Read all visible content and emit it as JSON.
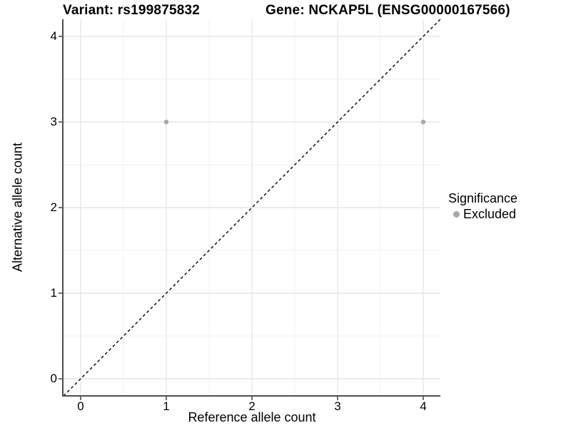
{
  "header": {
    "title_left": "Variant: rs199875832",
    "title_right": "Gene: NCKAP5L (ENSG00000167566)"
  },
  "chart_data": {
    "type": "scatter",
    "title": "Variant: rs199875832   Gene: NCKAP5L (ENSG00000167566)",
    "xlabel": "Reference allele count",
    "ylabel": "Alternative allele count",
    "xlim": [
      -0.2,
      4.2
    ],
    "ylim": [
      -0.2,
      4.2
    ],
    "x_ticks": [
      0,
      1,
      2,
      3,
      4
    ],
    "y_ticks": [
      0,
      1,
      2,
      3,
      4
    ],
    "grid": true,
    "minor_grid": true,
    "legend_position": "right",
    "series": [
      {
        "name": "Excluded",
        "color": "#a8a8a8",
        "marker": "circle",
        "points": [
          [
            1,
            3
          ],
          [
            4,
            3
          ]
        ]
      }
    ],
    "reference_line": {
      "slope": 1,
      "intercept": 0,
      "style": "dashed",
      "color": "#000000"
    }
  },
  "legend": {
    "title": "Significance",
    "items": [
      {
        "label": "Excluded",
        "swatch_color": "#a8a8a8"
      }
    ]
  },
  "colors": {
    "background": "#ffffff",
    "grid_major": "#e6e6e6",
    "grid_minor": "#f2f2f2",
    "axis_line": "#4f4f4f",
    "tick_mark": "#4f4f4f",
    "text": "#000000"
  }
}
